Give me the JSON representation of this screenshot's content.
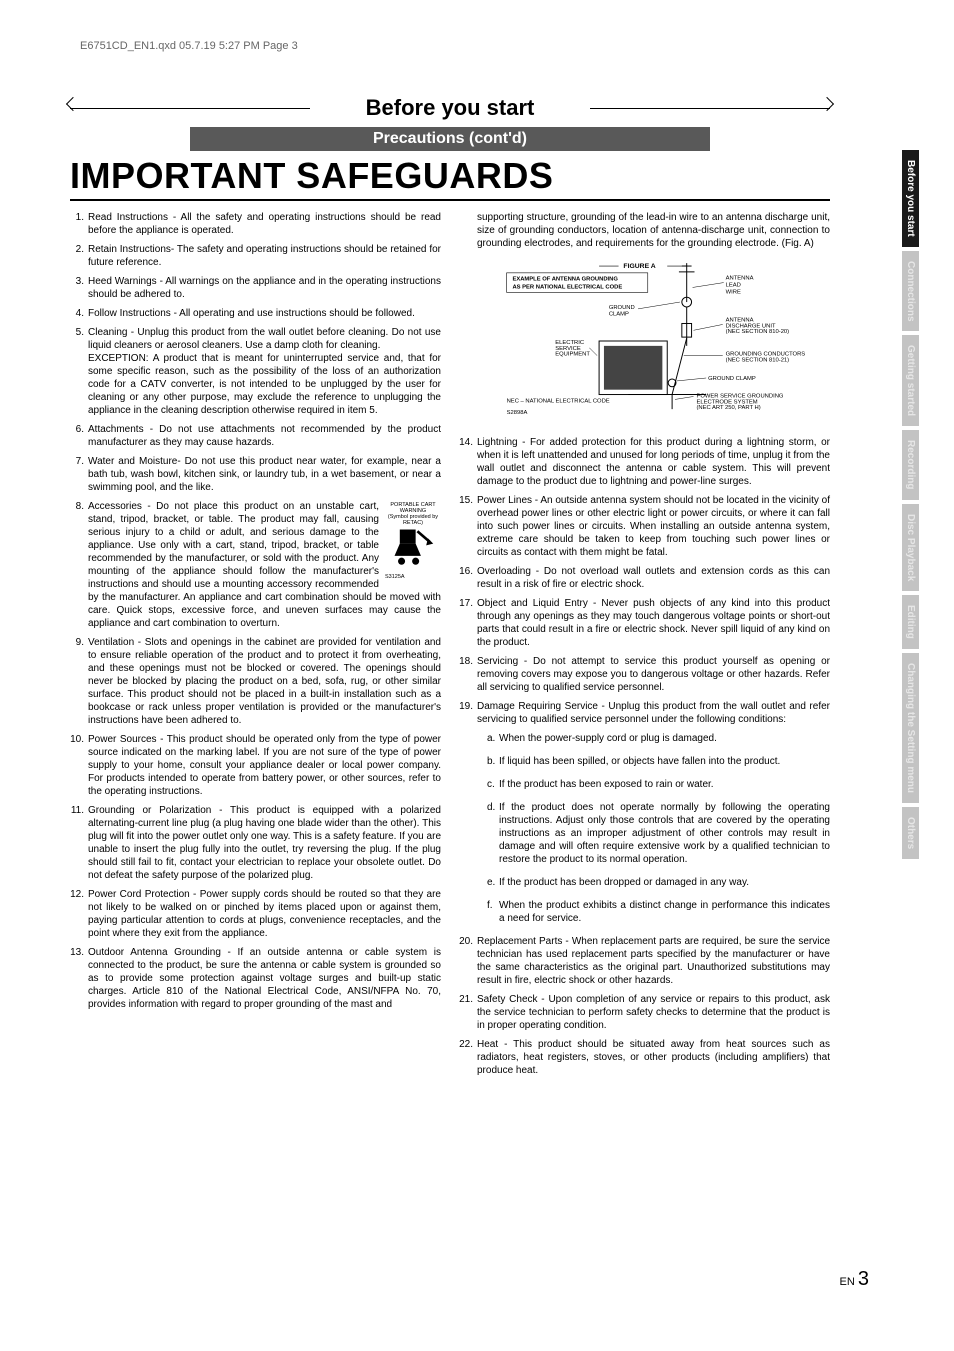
{
  "header_line": "E6751CD_EN1.qxd  05.7.19  5:27 PM  Page 3",
  "section_title": "Before you start",
  "subtitle": "Precautions (cont'd)",
  "main_heading": "IMPORTANT SAFEGUARDS",
  "page_label_prefix": "EN",
  "page_number": "3",
  "sidebar": [
    {
      "label": "Before you start",
      "active": true
    },
    {
      "label": "Connections",
      "active": false
    },
    {
      "label": "Getting started",
      "active": false
    },
    {
      "label": "Recording",
      "active": false
    },
    {
      "label": "Disc Playback",
      "active": false
    },
    {
      "label": "Editing",
      "active": false
    },
    {
      "label": "Changing the Setting menu",
      "active": false
    },
    {
      "label": "Others",
      "active": false
    }
  ],
  "cart_label_top": "PORTABLE CART WARNING",
  "cart_label_sub": "(Symbol provided by RETAC)",
  "cart_label_code": "S3125A",
  "figure": {
    "title": "FIGURE A",
    "subtitle1": "EXAMPLE OF ANTENNA GROUNDING",
    "subtitle2": "AS PER NATIONAL ELECTRICAL CODE",
    "label_ground_clamp": "GROUND CLAMP",
    "label_antenna_lead": "ANTENNA LEAD WIRE",
    "label_discharge": "ANTENNA DISCHARGE UNIT (NEC SECTION 810-20)",
    "label_conductors": "GROUNDING CONDUCTORS (NEC SECTION 810-21)",
    "label_ground_clamp2": "GROUND CLAMP",
    "label_power_service": "POWER SERVICE GROUNDING ELECTRODE SYSTEM (NEC ART 250, PART H)",
    "label_electric": "ELECTRIC SERVICE EQUIPMENT",
    "label_nec": "NEC – NATIONAL ELECTRICAL CODE",
    "label_code": "S2898A"
  },
  "left_items": [
    {
      "n": "1.",
      "t": "Read Instructions - All the safety and operating instructions should be read before the appliance is operated."
    },
    {
      "n": "2.",
      "t": "Retain Instructions- The safety and operating instructions should be retained for future reference."
    },
    {
      "n": "3.",
      "t": "Heed Warnings - All warnings on the appliance and in the operating instructions should be adhered to."
    },
    {
      "n": "4.",
      "t": "Follow Instructions - All operating and use instructions should be followed."
    },
    {
      "n": "5.",
      "t": "Cleaning - Unplug this product from the wall outlet before cleaning. Do not use liquid cleaners or aerosol cleaners. Use a damp cloth for cleaning.\nEXCEPTION: A product that is meant for uninterrupted service and, that for some specific reason, such as the possibility of the loss of an authorization code for a CATV converter, is not intended to be unplugged by the user for cleaning or any other purpose, may exclude the reference to unplugging the appliance in the cleaning description otherwise required in item 5."
    },
    {
      "n": "6.",
      "t": "Attachments - Do not use attachments not recommended by the product manufacturer as they may cause hazards."
    },
    {
      "n": "7.",
      "t": "Water and Moisture- Do not use this product near water, for example, near a bath tub, wash bowl, kitchen sink, or laundry tub, in a wet basement, or near a swimming pool, and the like."
    },
    {
      "n": "8.",
      "t": "Accessories - Do not place this product on an unstable cart, stand, tripod, bracket, or table. The product may fall, causing serious injury to a child or adult, and serious damage to the appliance. Use only with a cart, stand, tripod, bracket, or table recommended by the manufacturer, or sold with the product. Any mounting of the appliance should follow the manufacturer's instructions and should use a mounting accessory recommended by the manufacturer. An appliance and cart combination should be moved with care. Quick stops, excessive force, and uneven surfaces may cause the appliance and cart combination to overturn.",
      "cart": true
    },
    {
      "n": "9.",
      "t": "Ventilation - Slots and openings in the cabinet are provided for ventilation and to ensure reliable operation of the product and to protect it from overheating, and these openings must not be blocked or covered. The openings should never be blocked by placing the product on a bed, sofa, rug, or other similar surface. This product should not be placed in a built-in installation such as a bookcase or rack unless proper ventilation is provided or the manufacturer's instructions have been adhered to."
    },
    {
      "n": "10.",
      "t": "Power Sources - This product should be operated only from the type of power source indicated on the marking label. If you are not sure of the type of power supply to your home, consult your appliance dealer or local power company. For products intended to operate from battery power, or other sources, refer to the operating instructions."
    },
    {
      "n": "11.",
      "t": "Grounding or Polarization - This product is equipped with a polarized alternating-current line plug (a plug having one blade wider than the other). This plug will fit into the power outlet only one way. This is a safety feature. If you are unable to insert the plug fully into the outlet, try reversing the plug. If the plug should still fail to fit, contact your electrician to replace your obsolete outlet. Do not defeat the safety purpose of the polarized plug."
    },
    {
      "n": "12.",
      "t": "Power Cord Protection - Power supply cords should be routed so that they are not likely to be walked on or pinched by items placed upon or against them, paying particular attention to cords at plugs, convenience receptacles, and the point where they exit from the appliance."
    },
    {
      "n": "13.",
      "t": "Outdoor Antenna Grounding - If an outside antenna or cable system is connected to the product, be sure the antenna or cable system is grounded so as to provide some protection against voltage surges and built-up static charges. Article 810 of the National Electrical Code, ANSI/NFPA No. 70, provides information with regard to proper grounding of the mast and"
    }
  ],
  "right_intro": "supporting structure, grounding of the lead-in wire to an antenna discharge unit, size of grounding conductors, location of antenna-discharge unit, connection to grounding electrodes, and requirements for the grounding electrode. (Fig. A)",
  "right_items": [
    {
      "n": "14.",
      "t": "Lightning - For added protection for this product during a lightning storm, or when it is left unattended and unused for long periods of time, unplug it from the wall outlet and disconnect the antenna or cable system. This will prevent damage to the product due to lightning and power-line surges."
    },
    {
      "n": "15.",
      "t": "Power Lines - An outside antenna system should not be located in the vicinity of overhead power lines or other electric light or power circuits, or where it can fall into such power lines or circuits. When installing an outside antenna system, extreme care should be taken to keep from touching such power lines or circuits as contact with them might be fatal."
    },
    {
      "n": "16.",
      "t": "Overloading - Do not overload wall outlets and extension cords as this can result in a risk of fire or electric shock."
    },
    {
      "n": "17.",
      "t": "Object and Liquid Entry - Never push objects of any kind into this product through any openings as they may touch dangerous voltage points or short-out parts that could result in a fire or electric shock. Never spill liquid of any kind on the product."
    },
    {
      "n": "18.",
      "t": "Servicing - Do not attempt to service this product yourself as opening or removing covers may expose you to dangerous voltage or other hazards. Refer all servicing to qualified service personnel."
    },
    {
      "n": "19.",
      "t": "Damage Requiring Service - Unplug this product from the wall outlet and refer servicing to qualified service personnel under the following conditions:",
      "subs": [
        {
          "sn": "a.",
          "st": "When the power-supply cord or plug is damaged."
        },
        {
          "sn": "b.",
          "st": "If liquid has been spilled, or objects have fallen into the product."
        },
        {
          "sn": "c.",
          "st": "If the product has been exposed to rain or water."
        },
        {
          "sn": "d.",
          "st": "If the product does not operate normally by following the operating instructions.  Adjust only those controls that are covered by the operating instructions as an improper adjustment of other controls may result in damage and will often require extensive work by a qualified technician to restore the product to its normal operation."
        },
        {
          "sn": "e.",
          "st": "If the product has been dropped or damaged in any way."
        },
        {
          "sn": "f.",
          "st": "When the product exhibits a distinct change in performance this indicates a need for service."
        }
      ]
    },
    {
      "n": "20.",
      "t": "Replacement Parts - When replacement parts are required, be sure the service technician has used replacement parts specified by the manufacturer or have the same characteristics as the original part. Unauthorized substitutions may result in fire, electric shock or other hazards."
    },
    {
      "n": "21.",
      "t": "Safety Check - Upon completion of any service or repairs to this product, ask the service technician to perform safety checks to determine that the product is in proper operating condition."
    },
    {
      "n": "22.",
      "t": "Heat - This product should be situated away from heat sources such as radiators, heat registers, stoves, or other products (including amplifiers) that produce heat."
    }
  ]
}
